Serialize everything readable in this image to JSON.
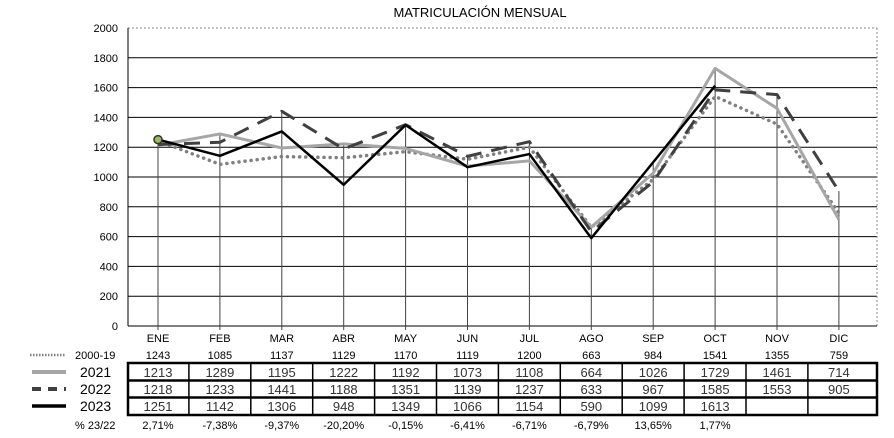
{
  "chart_data": {
    "type": "line",
    "title": "MATRICULACIÓN MENSUAL",
    "categories": [
      "ENE",
      "FEB",
      "MAR",
      "ABR",
      "MAY",
      "JUN",
      "JUL",
      "AGO",
      "SEP",
      "OCT",
      "NOV",
      "DIC"
    ],
    "ylim": [
      0,
      2000
    ],
    "yticks": [
      0,
      200,
      400,
      600,
      800,
      1000,
      1200,
      1400,
      1600,
      1800,
      2000
    ],
    "grid": true,
    "legend": "table-left",
    "series": [
      {
        "name": "2000-19",
        "style": "dotted",
        "color": "#808080",
        "values": [
          1243,
          1085,
          1137,
          1129,
          1170,
          1119,
          1200,
          663,
          984,
          1541,
          1355,
          759
        ]
      },
      {
        "name": "2021",
        "style": "solid-light",
        "color": "#a6a6a6",
        "values": [
          1213,
          1289,
          1195,
          1222,
          1192,
          1073,
          1108,
          664,
          1026,
          1729,
          1461,
          714
        ]
      },
      {
        "name": "2022",
        "style": "dashed",
        "color": "#404040",
        "values": [
          1218,
          1233,
          1441,
          1188,
          1351,
          1139,
          1237,
          633,
          967,
          1585,
          1553,
          905
        ]
      },
      {
        "name": "2023",
        "style": "solid",
        "color": "#000000",
        "values": [
          1251,
          1142,
          1306,
          948,
          1349,
          1066,
          1154,
          590,
          1099,
          1613,
          null,
          null
        ]
      }
    ],
    "change_row": {
      "label": "% 23/22",
      "values": [
        "2,71%",
        "-7,38%",
        "-9,37%",
        "-20,20%",
        "-0,15%",
        "-6,41%",
        "-6,71%",
        "-6,79%",
        "13,65%",
        "1,77%",
        "",
        ""
      ]
    }
  }
}
